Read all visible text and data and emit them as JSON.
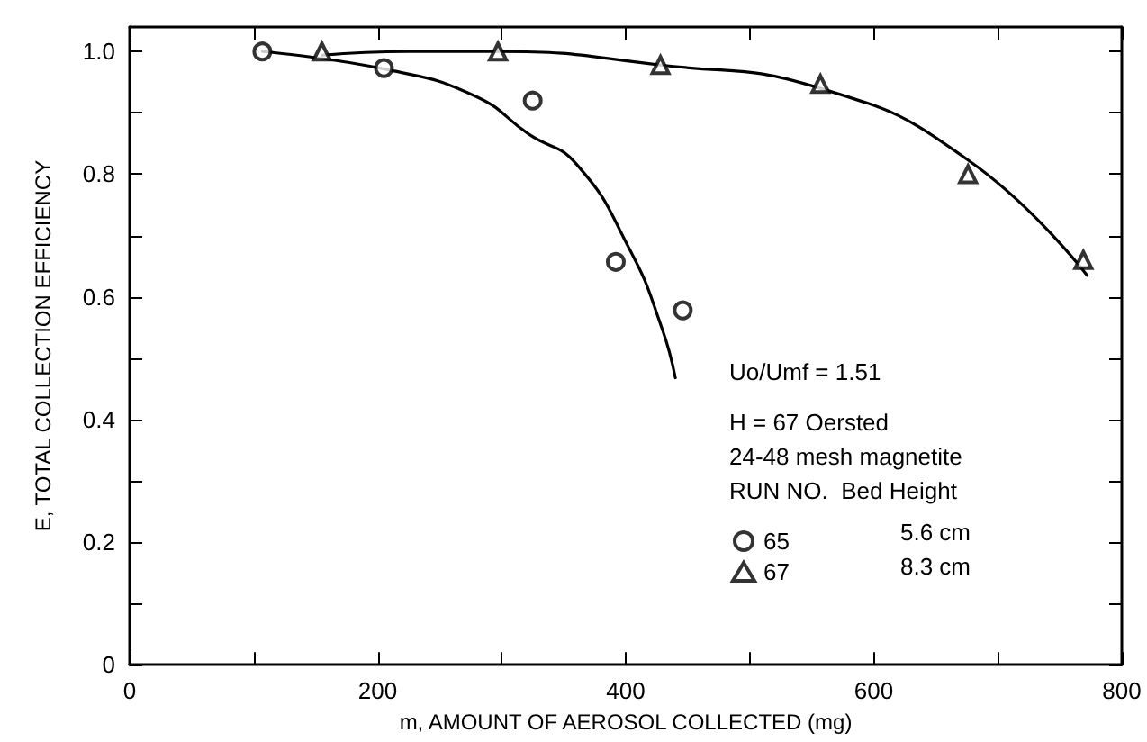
{
  "chart_data": {
    "type": "scatter",
    "xlabel": "m, AMOUNT OF AEROSOL COLLECTED (mg)",
    "ylabel": "E, TOTAL COLLECTION EFFICIENCY",
    "xlim": [
      0,
      800
    ],
    "ylim": [
      0,
      1.04
    ],
    "xticks": [
      0,
      {
        "value": 100,
        "label": null
      },
      200,
      {
        "value": 300,
        "label": null
      },
      400,
      {
        "value": 500,
        "label": null
      },
      600,
      {
        "value": 700,
        "label": null
      },
      800
    ],
    "yticks": [
      0,
      {
        "value": 0.1,
        "label": null
      },
      0.2,
      {
        "value": 0.3,
        "label": null
      },
      0.4,
      {
        "value": 0.5,
        "label": null
      },
      0.6,
      {
        "value": 0.7,
        "label": null
      },
      0.8,
      {
        "value": 0.9,
        "label": null
      },
      {
        "value": 1,
        "label": "1.0"
      }
    ],
    "grid": false,
    "legend": "bottom right",
    "annotations": [
      "Uo/Umf = 1.51",
      "H = 67 Oersted",
      "24-48 mesh magnetite",
      "RUN NO.  Bed Height",
      "5.6 cm",
      "8.3 cm"
    ],
    "series": [
      {
        "name": "65",
        "marker": "circle",
        "color": "#000000",
        "x": [
          107,
          205,
          325,
          392,
          446
        ],
        "values": [
          1.0,
          0.973,
          0.92,
          0.657,
          0.578
        ]
      },
      {
        "name": "67",
        "marker": "triangle",
        "color": "#000000",
        "x": [
          155,
          297,
          428,
          557,
          676,
          769
        ],
        "values": [
          1.0,
          1.0,
          0.978,
          0.947,
          0.8,
          0.66
        ]
      },
      {
        "type": "line",
        "marker": "none",
        "line_style": "solid",
        "color": "#000000",
        "x": [
          107,
          209,
          279,
          322,
          360,
          403,
          429,
          440
        ],
        "values": [
          1.0,
          0.97,
          0.927,
          0.865,
          0.817,
          0.678,
          0.55,
          0.468
        ]
      },
      {
        "type": "line",
        "marker": "none",
        "line_style": "solid",
        "color": "#000000",
        "x": [
          155,
          225,
          297,
          428,
          557,
          676,
          772
        ],
        "values": [
          0.994,
          1.0,
          1.0,
          0.978,
          0.94,
          0.823,
          0.635
        ]
      }
    ]
  }
}
